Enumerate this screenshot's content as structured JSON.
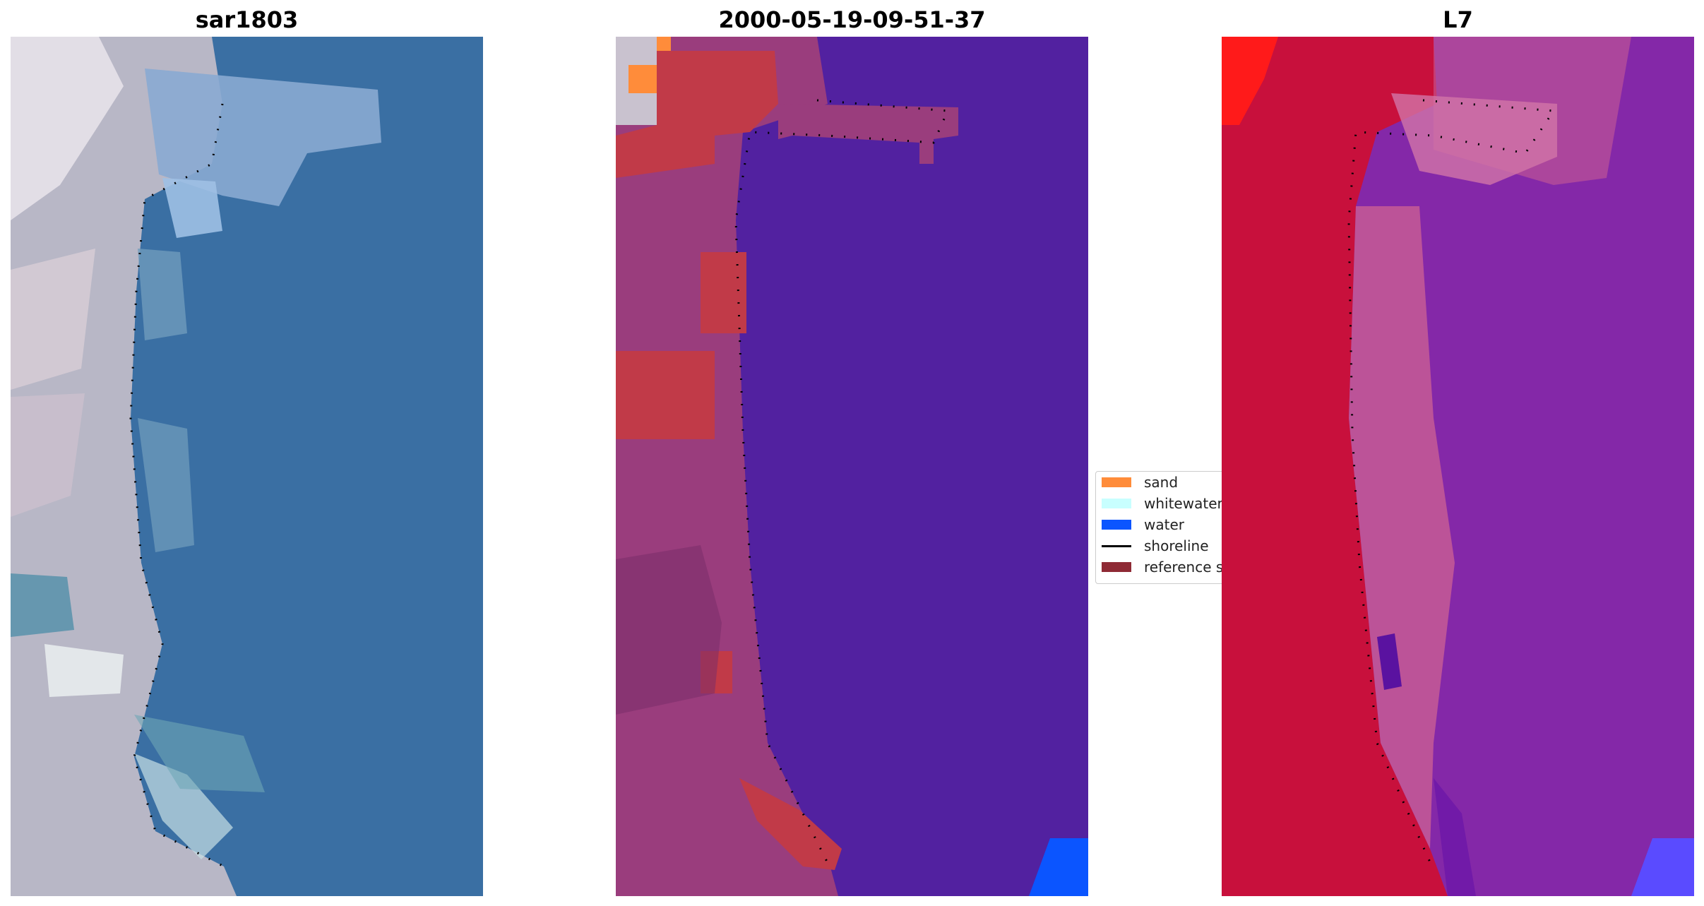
{
  "panels": [
    {
      "title": "sar1803"
    },
    {
      "title": "2000-05-19-09-51-37"
    },
    {
      "title": "L7"
    }
  ],
  "legend": {
    "items": [
      {
        "label": "sand",
        "color": "#ff8c3a"
      },
      {
        "label": "whitewater",
        "color": "#c8ffff"
      },
      {
        "label": "water",
        "color": "#0b55ff"
      },
      {
        "label": "shoreline",
        "color": "#000000"
      },
      {
        "label": "reference shoreline buffer",
        "color": "#8f2a35"
      }
    ]
  },
  "colors": {
    "rgb_water": "#3a6fa3",
    "rgb_land": "#c9c2cf",
    "class_water": "#5221a0",
    "class_land": "#9a3d7d",
    "class_buffer": "#c13a48",
    "class_sand": "#ff8c3a",
    "class_whitewater": "#c8ffff",
    "class_water_patch": "#0b55ff",
    "false_land": "#c8103c",
    "false_water": "#8428a8",
    "false_bright": "#ff1a1a",
    "false_blue": "#5a4bff"
  }
}
